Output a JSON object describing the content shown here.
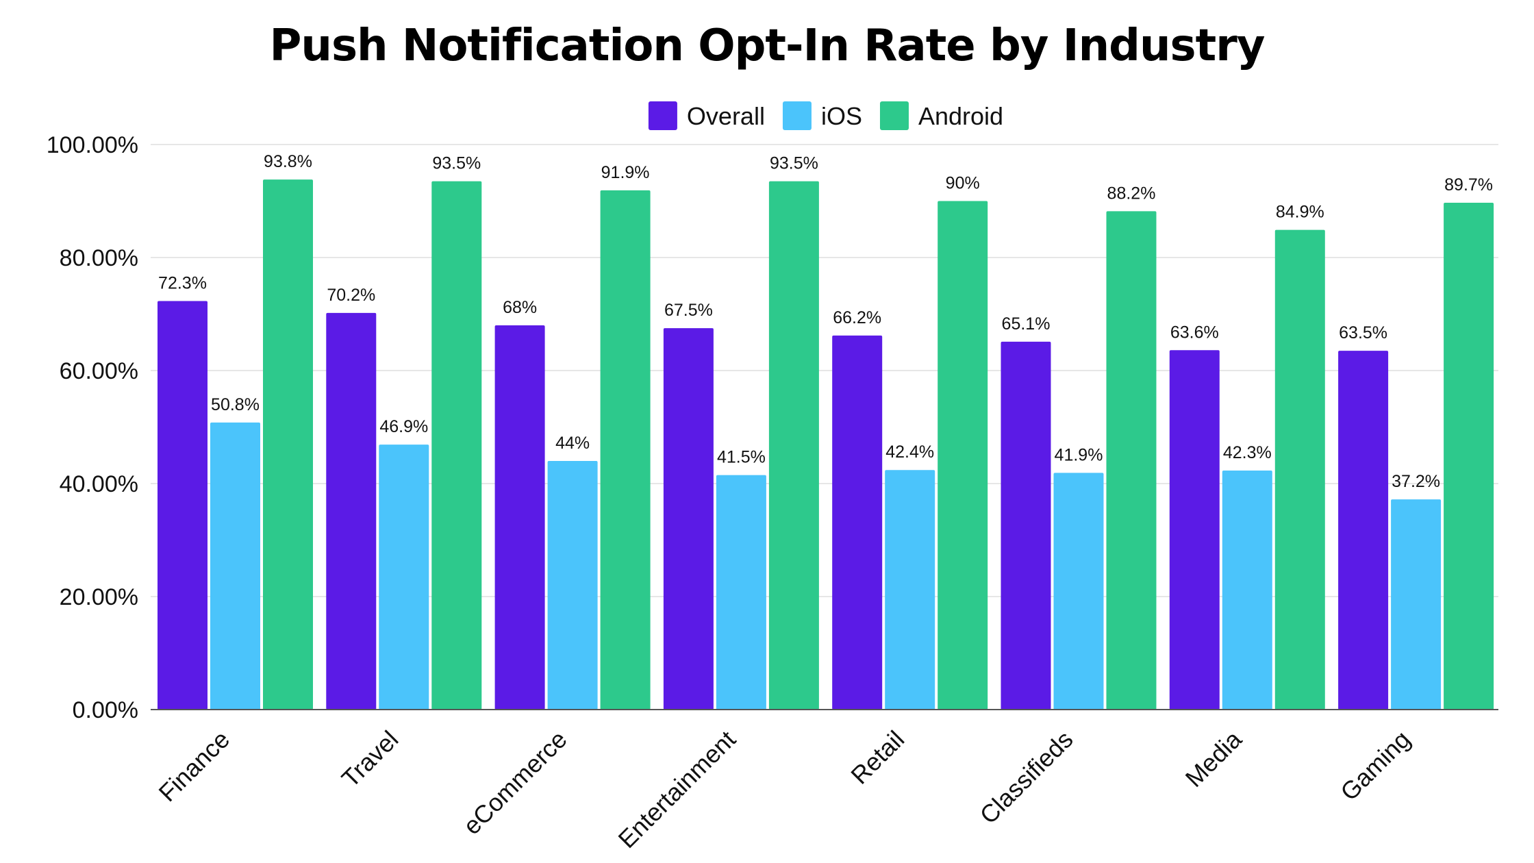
{
  "chart_data": {
    "type": "bar",
    "title": "Push Notification Opt-In Rate by Industry",
    "categories": [
      "Finance",
      "Travel",
      "eCommerce",
      "Entertainment",
      "Retail",
      "Classifieds",
      "Media",
      "Gaming"
    ],
    "series": [
      {
        "name": "Overall",
        "color": "#5B1BE6",
        "values": [
          72.3,
          70.2,
          68,
          67.5,
          66.2,
          65.1,
          63.6,
          63.5
        ],
        "labels": [
          "72.3%",
          "70.2%",
          "68%",
          "67.5%",
          "66.2%",
          "65.1%",
          "63.6%",
          "63.5%"
        ]
      },
      {
        "name": "iOS",
        "color": "#4BC4FB",
        "values": [
          50.8,
          46.9,
          44,
          41.5,
          42.4,
          41.9,
          42.3,
          37.2
        ],
        "labels": [
          "50.8%",
          "46.9%",
          "44%",
          "41.5%",
          "42.4%",
          "41.9%",
          "42.3%",
          "37.2%"
        ]
      },
      {
        "name": "Android",
        "color": "#2DC98C",
        "values": [
          93.8,
          93.5,
          91.9,
          93.5,
          90,
          88.2,
          84.9,
          89.7
        ],
        "labels": [
          "93.8%",
          "93.5%",
          "91.9%",
          "93.5%",
          "90%",
          "88.2%",
          "84.9%",
          "89.7%"
        ]
      }
    ],
    "yticks": [
      "0.00%",
      "20.00%",
      "40.00%",
      "60.00%",
      "80.00%",
      "100.00%"
    ],
    "ytick_values": [
      0,
      20,
      40,
      60,
      80,
      100
    ],
    "ylim": [
      0,
      100
    ],
    "xlabel": "",
    "ylabel": "",
    "grid": true,
    "legend_position": "top-center",
    "gridline_color": "#DDDDDD",
    "axis_color": "#555555"
  }
}
